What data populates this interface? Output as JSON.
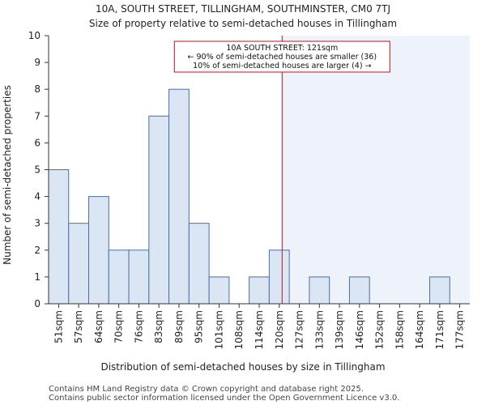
{
  "chart_data": {
    "type": "bar",
    "title": "10A, SOUTH STREET, TILLINGHAM, SOUTHMINSTER, CM0 7TJ",
    "subtitle": "Size of property relative to semi-detached houses in Tillingham",
    "xlabel": "Distribution of semi-detached houses by size in Tillingham",
    "ylabel": "Number of semi-detached properties",
    "categories": [
      "51sqm",
      "57sqm",
      "64sqm",
      "70sqm",
      "76sqm",
      "83sqm",
      "89sqm",
      "95sqm",
      "101sqm",
      "108sqm",
      "114sqm",
      "120sqm",
      "127sqm",
      "133sqm",
      "139sqm",
      "146sqm",
      "152sqm",
      "158sqm",
      "164sqm",
      "171sqm",
      "177sqm"
    ],
    "values": [
      5,
      3,
      4,
      2,
      2,
      7,
      8,
      3,
      1,
      0,
      1,
      2,
      0,
      1,
      0,
      1,
      0,
      0,
      0,
      1,
      0
    ],
    "ylim": [
      0,
      10
    ],
    "yticks": [
      0,
      1,
      2,
      3,
      4,
      5,
      6,
      7,
      8,
      9,
      10
    ],
    "marker": {
      "value_sqm": 121,
      "annotation": [
        "10A SOUTH STREET: 121sqm",
        "← 90% of semi-detached houses are smaller (36)",
        "10% of semi-detached houses are larger (4) →"
      ]
    },
    "colors": {
      "bar_fill": "#dbe6f5",
      "bar_stroke": "#4a6fa5",
      "highlight_bg": "#eef3fb",
      "marker": "#c0101e",
      "axis": "#333333"
    }
  },
  "footer": {
    "line1": "Contains HM Land Registry data © Crown copyright and database right 2025.",
    "line2": "Contains public sector information licensed under the Open Government Licence v3.0."
  }
}
